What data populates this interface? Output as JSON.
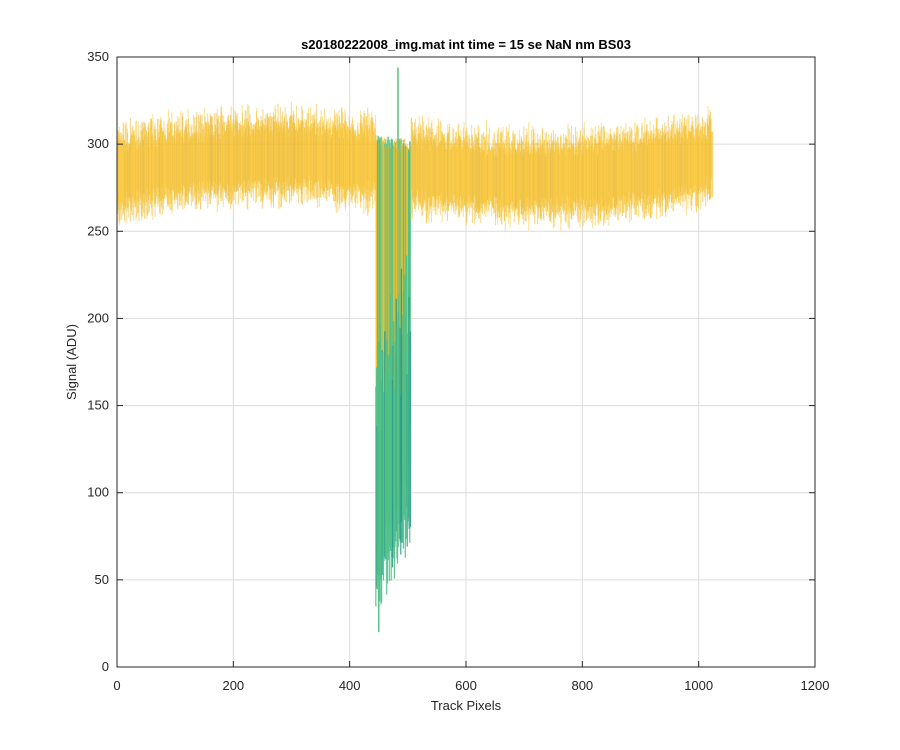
{
  "chart_data": {
    "type": "line",
    "title": "s20180222008_img.mat int time = 15 se  NaN nm BS03",
    "xlabel": "Track Pixels",
    "ylabel": "Signal (ADU)",
    "xlim": [
      0,
      1200
    ],
    "ylim": [
      0,
      350
    ],
    "xticks": [
      0,
      200,
      400,
      600,
      800,
      1000,
      1200
    ],
    "yticks": [
      0,
      50,
      100,
      150,
      200,
      250,
      300,
      350
    ],
    "xtick_labels": [
      "0",
      "200",
      "400",
      "600",
      "800",
      "1000",
      "1200"
    ],
    "ytick_labels": [
      "0",
      "50",
      "100",
      "150",
      "200",
      "250",
      "300",
      "350"
    ],
    "grid": true,
    "colors": {
      "high": "#f9c32a",
      "mid": "#e6b530",
      "low": "#4fc08a",
      "deep": "#2e9c8c",
      "axis": "#262626",
      "grid": "#dcdcdc"
    },
    "series_summary": {
      "x_range": [
        0,
        1024
      ],
      "baseline_start": 283,
      "baseline_end": 291,
      "noise_amplitude": 27,
      "dip_x_range": [
        445,
        505
      ],
      "dip_min": 20,
      "spike_x": 483,
      "spike_max": 344
    }
  }
}
